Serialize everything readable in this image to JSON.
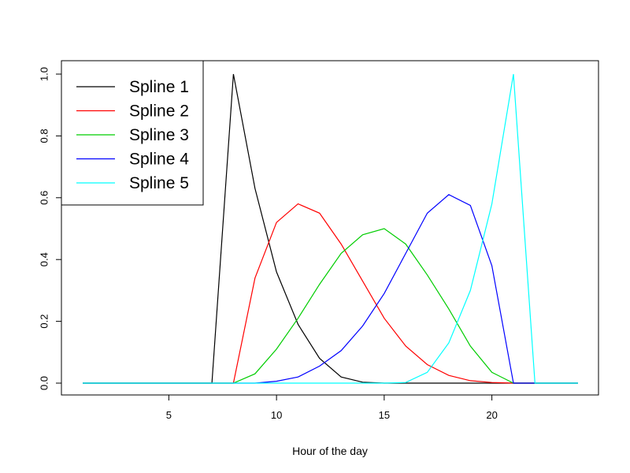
{
  "chart_data": {
    "type": "line",
    "title": "",
    "xlabel": "Hour of the day",
    "ylabel": "",
    "xlim": [
      1,
      24
    ],
    "ylim": [
      0,
      1
    ],
    "x_ticks": [
      5,
      10,
      15,
      20
    ],
    "y_ticks": [
      0.0,
      0.2,
      0.4,
      0.6,
      0.8,
      1.0
    ],
    "x_tick_labels": [
      "5",
      "10",
      "15",
      "20"
    ],
    "y_tick_labels": [
      "0.0",
      "0.2",
      "0.4",
      "0.6",
      "0.8",
      "1.0"
    ],
    "grid": false,
    "legend_position": "top-left",
    "x": [
      1,
      2,
      3,
      4,
      5,
      6,
      7,
      8,
      9,
      10,
      11,
      12,
      13,
      14,
      15,
      16,
      17,
      18,
      19,
      20,
      21,
      22,
      23,
      24
    ],
    "series": [
      {
        "name": "Spline 1",
        "color": "#000000",
        "values": [
          0,
          0,
          0,
          0,
          0,
          0,
          0,
          1.0,
          0.63,
          0.36,
          0.19,
          0.08,
          0.02,
          0.003,
          0,
          0,
          0,
          0,
          0,
          0,
          0,
          0,
          0,
          0
        ]
      },
      {
        "name": "Spline 2",
        "color": "#ff0000",
        "values": [
          0,
          0,
          0,
          0,
          0,
          0,
          0,
          0,
          0.34,
          0.52,
          0.58,
          0.55,
          0.45,
          0.33,
          0.21,
          0.12,
          0.06,
          0.025,
          0.008,
          0.002,
          0,
          0,
          0,
          0
        ]
      },
      {
        "name": "Spline 3",
        "color": "#00cd00",
        "values": [
          0,
          0,
          0,
          0,
          0,
          0,
          0,
          0,
          0.03,
          0.11,
          0.21,
          0.32,
          0.42,
          0.48,
          0.5,
          0.45,
          0.35,
          0.24,
          0.12,
          0.035,
          0,
          0,
          0,
          0
        ]
      },
      {
        "name": "Spline 4",
        "color": "#0000ff",
        "values": [
          0,
          0,
          0,
          0,
          0,
          0,
          0,
          0,
          0,
          0.006,
          0.02,
          0.055,
          0.105,
          0.185,
          0.29,
          0.42,
          0.55,
          0.61,
          0.575,
          0.38,
          0,
          0,
          0,
          0
        ]
      },
      {
        "name": "Spline 5",
        "color": "#00ffff",
        "values": [
          0,
          0,
          0,
          0,
          0,
          0,
          0,
          0,
          0,
          0,
          0,
          0,
          0,
          0,
          0,
          0.002,
          0.035,
          0.13,
          0.3,
          0.58,
          1.0,
          0,
          0,
          0
        ]
      }
    ]
  }
}
